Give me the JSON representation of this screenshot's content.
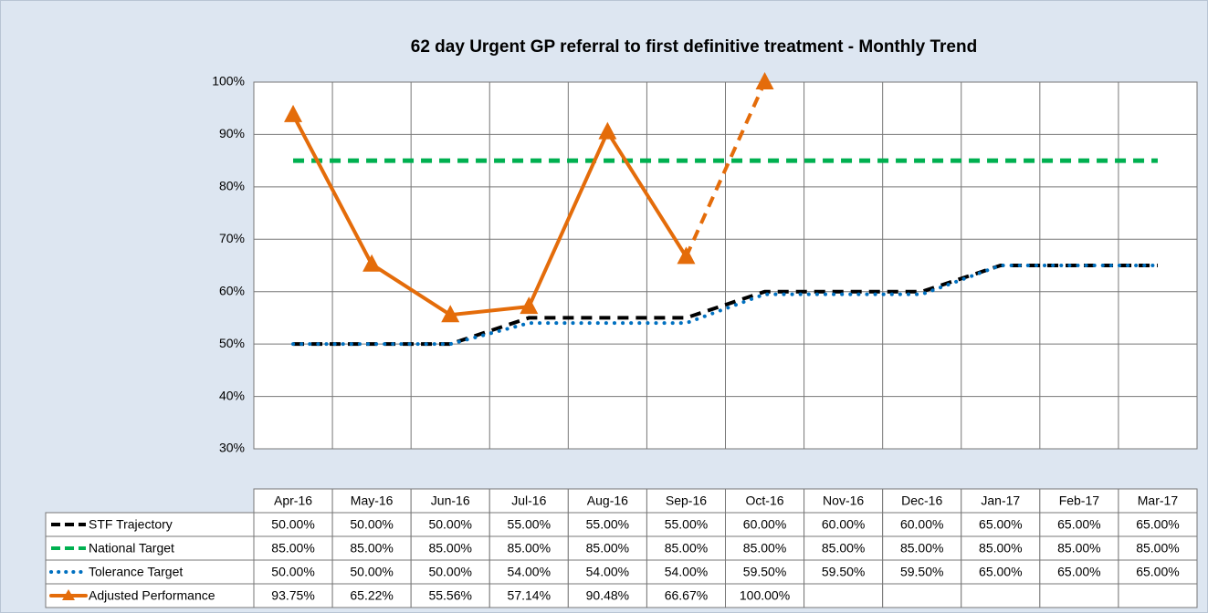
{
  "chart_data": {
    "type": "line",
    "title": "62 day Urgent GP referral to first definitive treatment - Monthly Trend",
    "categories": [
      "Apr-16",
      "May-16",
      "Jun-16",
      "Jul-16",
      "Aug-16",
      "Sep-16",
      "Oct-16",
      "Nov-16",
      "Dec-16",
      "Jan-17",
      "Feb-17",
      "Mar-17"
    ],
    "ylim": [
      30,
      100
    ],
    "yticks": [
      {
        "value": 30,
        "label": "30%"
      },
      {
        "value": 40,
        "label": "40%"
      },
      {
        "value": 50,
        "label": "50%"
      },
      {
        "value": 60,
        "label": "60%"
      },
      {
        "value": 70,
        "label": "70%"
      },
      {
        "value": 80,
        "label": "80%"
      },
      {
        "value": 90,
        "label": "90%"
      },
      {
        "value": 100,
        "label": "100%"
      }
    ],
    "grid": true,
    "series": [
      {
        "name": "STF Trajectory",
        "color": "#000000",
        "line_style": "dashed",
        "values": [
          50,
          50,
          50,
          55,
          55,
          55,
          60,
          60,
          60,
          65,
          65,
          65
        ],
        "value_labels": [
          "50.00%",
          "50.00%",
          "50.00%",
          "55.00%",
          "55.00%",
          "55.00%",
          "60.00%",
          "60.00%",
          "60.00%",
          "65.00%",
          "65.00%",
          "65.00%"
        ]
      },
      {
        "name": "National Target",
        "color": "#00b050",
        "line_style": "dashed",
        "values": [
          85,
          85,
          85,
          85,
          85,
          85,
          85,
          85,
          85,
          85,
          85,
          85
        ],
        "value_labels": [
          "85.00%",
          "85.00%",
          "85.00%",
          "85.00%",
          "85.00%",
          "85.00%",
          "85.00%",
          "85.00%",
          "85.00%",
          "85.00%",
          "85.00%",
          "85.00%"
        ]
      },
      {
        "name": "Tolerance Target",
        "color": "#0070c0",
        "line_style": "dotted",
        "values": [
          50,
          50,
          50,
          54,
          54,
          54,
          59.5,
          59.5,
          59.5,
          65,
          65,
          65
        ],
        "value_labels": [
          "50.00%",
          "50.00%",
          "50.00%",
          "54.00%",
          "54.00%",
          "54.00%",
          "59.50%",
          "59.50%",
          "59.50%",
          "65.00%",
          "65.00%",
          "65.00%"
        ]
      },
      {
        "name": "Adjusted Performance",
        "color": "#e46c0a",
        "line_style": "solid",
        "marker": "triangle",
        "values": [
          93.75,
          65.22,
          55.56,
          57.14,
          90.48,
          66.67,
          100,
          null,
          null,
          null,
          null,
          null
        ],
        "value_labels": [
          "93.75%",
          "65.22%",
          "55.56%",
          "57.14%",
          "90.48%",
          "66.67%",
          "100.00%",
          null,
          null,
          null,
          null,
          null
        ]
      }
    ]
  }
}
